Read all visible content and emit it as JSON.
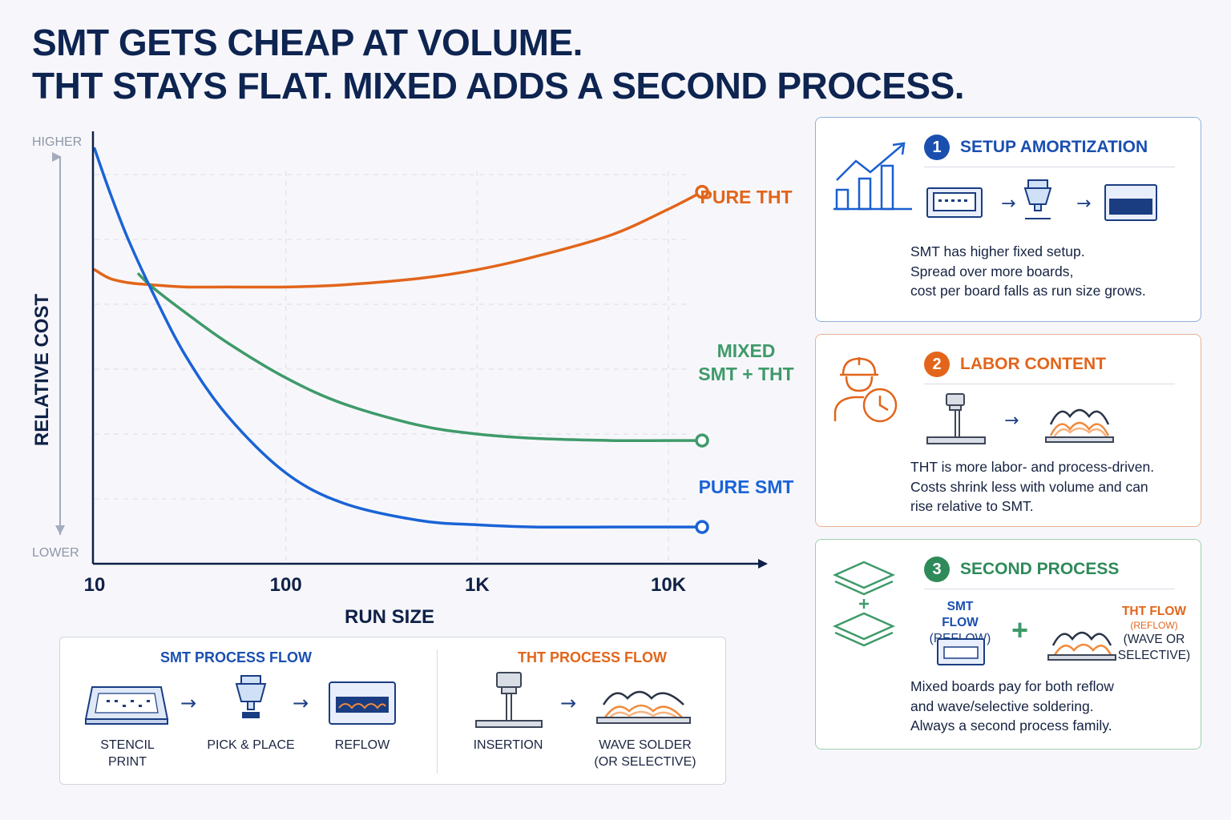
{
  "title": {
    "line1": "SMT GETS CHEAP AT VOLUME.",
    "line2": "THT STAYS FLAT. MIXED ADDS A SECOND PROCESS."
  },
  "chart_data": {
    "type": "line",
    "title": "SMT GETS CHEAP AT VOLUME. THT STAYS FLAT. MIXED ADDS A SECOND PROCESS.",
    "xlabel": "RUN SIZE",
    "ylabel": "RELATIVE COST",
    "x_scale": "log",
    "x_ticks": [
      "10",
      "100",
      "1K",
      "10K"
    ],
    "x_tick_values": [
      10,
      100,
      1000,
      10000
    ],
    "xlim": [
      10,
      15000
    ],
    "y_top_label": "HIGHER",
    "y_bottom_label": "LOWER",
    "ylim": [
      0,
      100
    ],
    "grid": true,
    "legend": "direct labels at line ends",
    "series": [
      {
        "name": "PURE THT",
        "label_lines": [
          "PURE THT"
        ],
        "color": "#e2651b",
        "x": [
          10,
          12,
          15,
          20,
          30,
          50,
          100,
          200,
          500,
          1000,
          2000,
          5000,
          10000,
          15000
        ],
        "y": [
          68,
          66,
          65,
          64.5,
          64,
          64,
          64,
          64.5,
          66,
          68,
          71,
          76,
          82,
          86
        ]
      },
      {
        "name": "MIXED SMT + THT",
        "label_lines": [
          "MIXED",
          "SMT + THT"
        ],
        "color": "#3f9a6a",
        "x": [
          17,
          20,
          30,
          50,
          100,
          200,
          500,
          1000,
          2000,
          5000,
          10000,
          15000
        ],
        "y": [
          67,
          64,
          58,
          51,
          43,
          37,
          32,
          30,
          29,
          28.5,
          28.5,
          28.5
        ]
      },
      {
        "name": "PURE SMT",
        "label_lines": [
          "PURE SMT"
        ],
        "color": "#1a63d6",
        "x": [
          10,
          12,
          15,
          20,
          30,
          50,
          100,
          200,
          500,
          1000,
          2000,
          5000,
          10000,
          15000
        ],
        "y": [
          96,
          86,
          75,
          63,
          48,
          34,
          21,
          14,
          10,
          9,
          8.5,
          8.5,
          8.5,
          8.5
        ]
      }
    ]
  },
  "panels": [
    {
      "number": "1",
      "title": "SETUP AMORTIZATION",
      "color": "#1a4fb0",
      "icon": "growth-chart-icon",
      "text": [
        "SMT has higher fixed setup.",
        "Spread over more boards,",
        "cost per board falls as run size grows."
      ]
    },
    {
      "number": "2",
      "title": "LABOR CONTENT",
      "color": "#e2651b",
      "icon": "worker-clock-icon",
      "text": [
        "THT is more labor- and process-driven.",
        "Costs shrink less with volume and can",
        "rise relative to SMT."
      ]
    },
    {
      "number": "3",
      "title": "SECOND PROCESS",
      "color": "#2f8a5a",
      "icon": "stacked-layers-icon",
      "smt_flow": [
        "SMT FLOW",
        "(REFLOW)"
      ],
      "tht_flow": [
        "THT FLOW",
        "(REFLOW)",
        "(WAVE OR",
        "SELECTIVE)"
      ],
      "plus": "+",
      "text": [
        "Mixed boards pay for both reflow",
        "and wave/selective soldering.",
        "Always a second process family."
      ]
    }
  ],
  "flows": {
    "smt": {
      "title": "SMT PROCESS FLOW",
      "steps": [
        [
          "STENCIL",
          "PRINT"
        ],
        [
          "PICK & PLACE"
        ],
        [
          "REFLOW"
        ]
      ]
    },
    "tht": {
      "title": "THT PROCESS FLOW",
      "steps": [
        [
          "INSERTION"
        ],
        [
          "WAVE SOLDER",
          "(OR SELECTIVE)"
        ]
      ]
    },
    "arrow": "→"
  }
}
